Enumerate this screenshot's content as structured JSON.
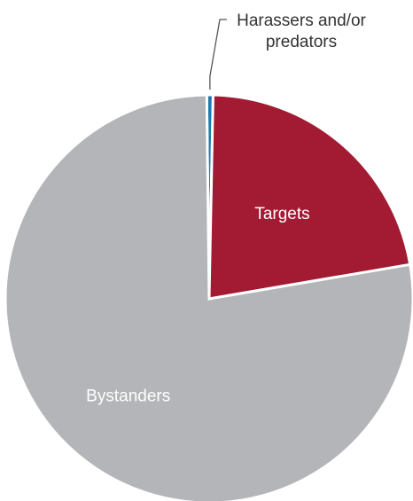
{
  "chart_data": {
    "type": "pie",
    "title": "",
    "legend": "none",
    "slices": [
      {
        "label": "Harassers and/or predators",
        "label_lines": [
          "Harassers and/or",
          "predators"
        ],
        "value": 0.5,
        "color": "#1a7bb0",
        "label_style": "callout"
      },
      {
        "label": "Targets",
        "label_lines": [
          "Targets"
        ],
        "value": 22.0,
        "color": "#a31a33",
        "label_style": "inside"
      },
      {
        "label": "Bystanders",
        "label_lines": [
          "Bystanders"
        ],
        "value": 77.5,
        "color": "#b3b5b8",
        "label_style": "inside"
      }
    ],
    "colors": {
      "separator": "#ffffff",
      "callout_line": "#555555",
      "inside_text": "#ffffff",
      "callout_text": "#333333"
    }
  }
}
